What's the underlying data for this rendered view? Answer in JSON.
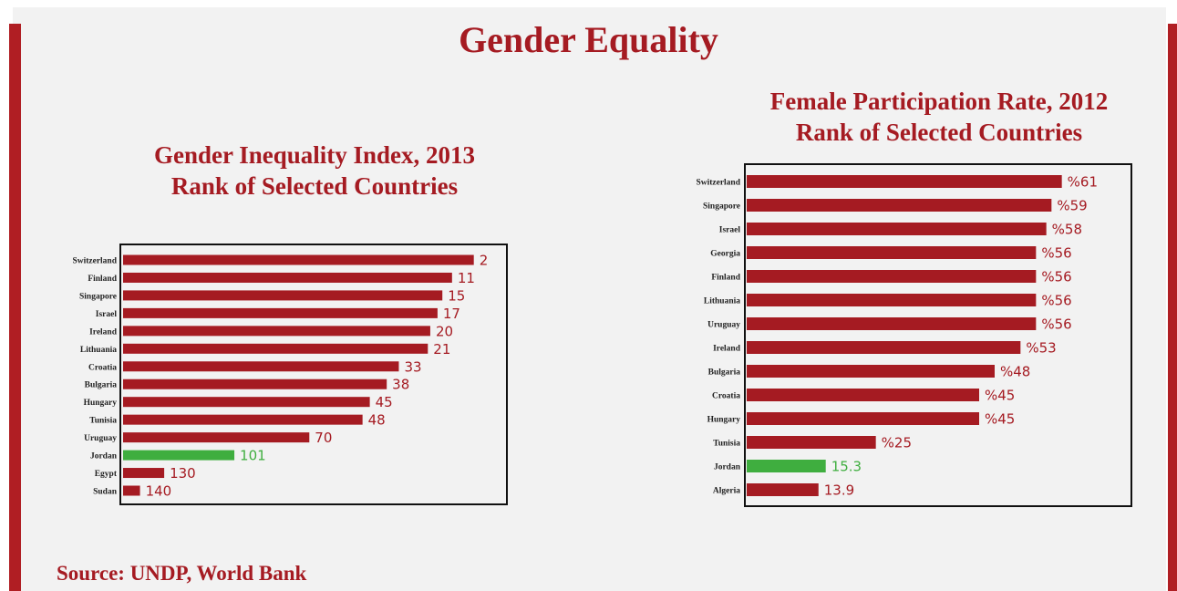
{
  "page": {
    "title": "Gender Equality",
    "source": "Source: UNDP, World Bank"
  },
  "colors": {
    "accent": "#b01e23",
    "bar": "#a51b22",
    "highlight": "#3fae3f",
    "panel": "#f2f2f2"
  },
  "chart_data": [
    {
      "type": "bar",
      "orientation": "horizontal",
      "title_lines": [
        "Gender Inequality Index, 2013",
        "Rank of Selected Countries"
      ],
      "categories": [
        "Switzerland",
        "Finland",
        "Singapore",
        "Israel",
        "Ireland",
        "Lithuania",
        "Croatia",
        "Bulgaria",
        "Hungary",
        "Tunisia",
        "Uruguay",
        "Jordan",
        "Egypt",
        "Sudan"
      ],
      "values": [
        2,
        11,
        15,
        17,
        20,
        21,
        33,
        38,
        45,
        48,
        70,
        101,
        130,
        140
      ],
      "labels": [
        "2",
        "11",
        "15",
        "17",
        "20",
        "21",
        "33",
        "38",
        "45",
        "48",
        "70",
        "101",
        "130",
        "140"
      ],
      "highlight": "Jordan",
      "bar_length_scale": "reversed rank (lower rank = longer bar)",
      "xlim": [
        0,
        147
      ],
      "grid": false
    },
    {
      "type": "bar",
      "orientation": "horizontal",
      "title_lines": [
        "Female Participation Rate, 2012",
        "Rank of Selected Countries"
      ],
      "categories": [
        "Switzerland",
        "Singapore",
        "Israel",
        "Georgia",
        "Finland",
        "Lithuania",
        "Uruguay",
        "Ireland",
        "Bulgaria",
        "Croatia",
        "Hungary",
        "Tunisia",
        "Jordan",
        "Algeria"
      ],
      "values": [
        61,
        59,
        58,
        56,
        56,
        56,
        56,
        53,
        48,
        45,
        45,
        25,
        15.3,
        13.9
      ],
      "labels": [
        "%61",
        "%59",
        "%58",
        "%56",
        "%56",
        "%56",
        "%56",
        "%53",
        "%48",
        "%45",
        "%45",
        "%25",
        "15.3",
        "13.9"
      ],
      "highlight": "Jordan",
      "xlim": [
        0,
        66
      ],
      "grid": false
    }
  ]
}
